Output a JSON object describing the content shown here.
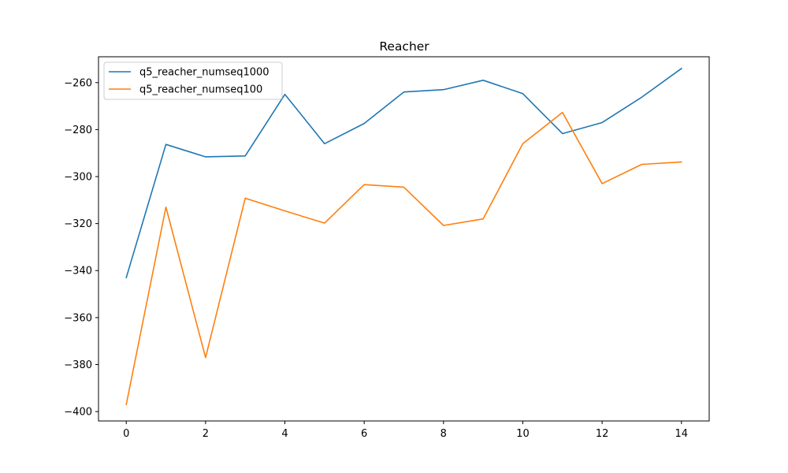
{
  "chart_data": {
    "type": "line",
    "title": "Reacher",
    "xlabel": "",
    "ylabel": "",
    "xlim": [
      -0.7,
      14.7
    ],
    "ylim": [
      -404,
      -249
    ],
    "xticks": [
      0,
      2,
      4,
      6,
      8,
      10,
      12,
      14
    ],
    "yticks": [
      -400,
      -380,
      -360,
      -340,
      -320,
      -300,
      -280,
      -260
    ],
    "grid": false,
    "legend_position": "top-left",
    "x": [
      0,
      1,
      2,
      3,
      4,
      5,
      6,
      7,
      8,
      9,
      10,
      11,
      12,
      13,
      14
    ],
    "series": [
      {
        "name": "q5_reacher_numseq1000",
        "color": "#1f77b4",
        "values": [
          -343,
          -286.3,
          -291.6,
          -291.2,
          -265,
          -286,
          -277.4,
          -264,
          -263,
          -259,
          -264.7,
          -281.7,
          -277,
          -266.2,
          -254
        ]
      },
      {
        "name": "q5_reacher_numseq100",
        "color": "#ff7f0e",
        "values": [
          -397,
          -313,
          -377,
          -309.2,
          -314.6,
          -319.8,
          -303.4,
          -304.5,
          -320.8,
          -318,
          -286,
          -272.7,
          -303,
          -294.8,
          -293.8
        ]
      }
    ]
  }
}
